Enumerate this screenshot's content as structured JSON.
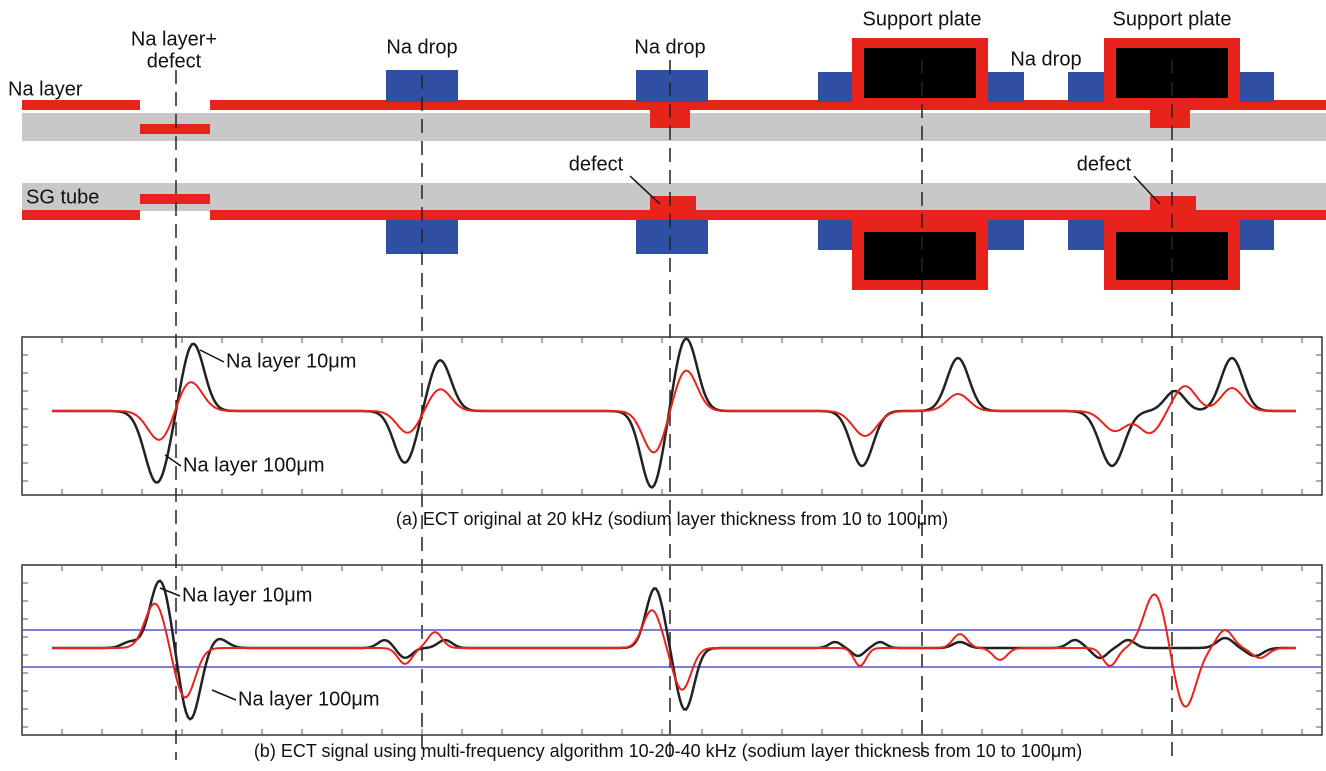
{
  "schematic": {
    "labels": [
      "Na layer",
      "Na layer+",
      "defect",
      "Na drop",
      "Na drop",
      "Support plate",
      "Support plate",
      "Na drop",
      "defect",
      "defect",
      "SG tube"
    ]
  },
  "panels": [
    {
      "curve_labels": [
        "Na layer 10μm",
        "Na layer 100μm"
      ],
      "caption": "(a) ECT original at 20 kHz (sodium layer thickness from 10 to 100μm)"
    },
    {
      "curve_labels": [
        "Na layer 10μm",
        "Na layer 100μm"
      ],
      "caption": "(b) ECT signal using multi-frequency algorithm 10-20-40 kHz (sodium layer thickness from 10 to 100μm)"
    }
  ]
}
